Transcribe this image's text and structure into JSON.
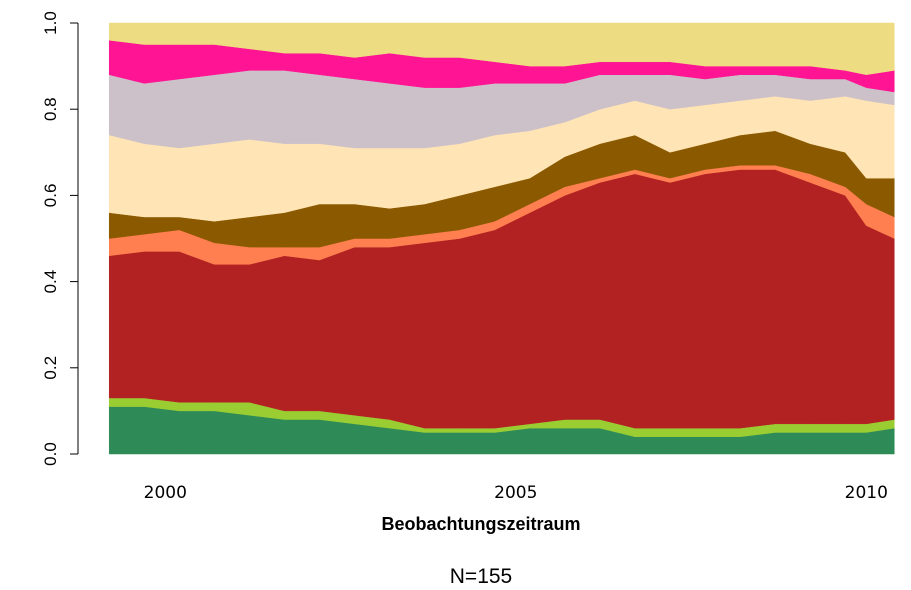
{
  "chart_data": {
    "type": "stacked_area",
    "xlabel": "Beobachtungszeitraum",
    "note": "N=155",
    "x": [
      1999.2,
      1999.7,
      2000.2,
      2000.7,
      2001.2,
      2001.7,
      2002.2,
      2002.7,
      2003.2,
      2003.7,
      2004.2,
      2004.7,
      2005.2,
      2005.7,
      2006.2,
      2006.7,
      2007.2,
      2007.7,
      2008.2,
      2008.7,
      2009.2,
      2009.7,
      2010.0,
      2010.4
    ],
    "xlim": [
      1999.14,
      2010.41
    ],
    "xticks": [
      2000,
      2005,
      2010
    ],
    "ylim": [
      0,
      1
    ],
    "yticks": [
      {
        "value": 0,
        "label": "0.0"
      },
      {
        "value": 0.2,
        "label": "0.2"
      },
      {
        "value": 0.4,
        "label": "0.4"
      },
      {
        "value": 0.6,
        "label": "0.6"
      },
      {
        "value": 0.8,
        "label": "0.8"
      },
      {
        "value": 1,
        "label": "1.0"
      }
    ],
    "series": [
      {
        "color": "#2e8b57",
        "values": [
          0.11,
          0.11,
          0.1,
          0.1,
          0.09,
          0.08,
          0.08,
          0.07,
          0.06,
          0.05,
          0.05,
          0.05,
          0.06,
          0.06,
          0.06,
          0.04,
          0.04,
          0.04,
          0.04,
          0.05,
          0.05,
          0.05,
          0.05,
          0.06
        ]
      },
      {
        "color": "#9acd32",
        "values": [
          0.02,
          0.02,
          0.02,
          0.02,
          0.03,
          0.02,
          0.02,
          0.02,
          0.02,
          0.01,
          0.01,
          0.01,
          0.01,
          0.02,
          0.02,
          0.02,
          0.02,
          0.02,
          0.02,
          0.02,
          0.02,
          0.02,
          0.02,
          0.02
        ]
      },
      {
        "color": "#b22222",
        "values": [
          0.33,
          0.34,
          0.35,
          0.32,
          0.32,
          0.36,
          0.35,
          0.39,
          0.4,
          0.43,
          0.44,
          0.46,
          0.49,
          0.52,
          0.55,
          0.59,
          0.57,
          0.59,
          0.6,
          0.59,
          0.56,
          0.53,
          0.46,
          0.42
        ]
      },
      {
        "color": "#ff7f50",
        "values": [
          0.04,
          0.04,
          0.05,
          0.05,
          0.04,
          0.02,
          0.03,
          0.02,
          0.02,
          0.02,
          0.02,
          0.02,
          0.02,
          0.02,
          0.01,
          0.01,
          0.01,
          0.01,
          0.01,
          0.01,
          0.02,
          0.02,
          0.05,
          0.05
        ]
      },
      {
        "color": "#8b5a00",
        "values": [
          0.06,
          0.04,
          0.03,
          0.05,
          0.07,
          0.08,
          0.1,
          0.08,
          0.07,
          0.07,
          0.08,
          0.08,
          0.06,
          0.07,
          0.08,
          0.08,
          0.06,
          0.06,
          0.07,
          0.08,
          0.07,
          0.08,
          0.06,
          0.09
        ]
      },
      {
        "color": "#ffe4b5",
        "values": [
          0.18,
          0.17,
          0.16,
          0.18,
          0.18,
          0.16,
          0.14,
          0.13,
          0.14,
          0.13,
          0.12,
          0.12,
          0.11,
          0.08,
          0.08,
          0.08,
          0.1,
          0.09,
          0.08,
          0.08,
          0.1,
          0.13,
          0.18,
          0.17
        ]
      },
      {
        "color": "#cdc1c9",
        "values": [
          0.14,
          0.14,
          0.16,
          0.16,
          0.16,
          0.17,
          0.16,
          0.16,
          0.15,
          0.14,
          0.13,
          0.12,
          0.11,
          0.09,
          0.08,
          0.06,
          0.08,
          0.06,
          0.06,
          0.05,
          0.05,
          0.04,
          0.03,
          0.03
        ]
      },
      {
        "color": "#ff1493",
        "values": [
          0.08,
          0.09,
          0.08,
          0.07,
          0.05,
          0.04,
          0.05,
          0.05,
          0.07,
          0.07,
          0.07,
          0.05,
          0.04,
          0.04,
          0.03,
          0.03,
          0.03,
          0.03,
          0.02,
          0.02,
          0.03,
          0.02,
          0.03,
          0.05
        ]
      },
      {
        "color": "#eedc82",
        "values": [
          0.04,
          0.05,
          0.05,
          0.05,
          0.06,
          0.07,
          0.07,
          0.08,
          0.07,
          0.08,
          0.08,
          0.09,
          0.1,
          0.1,
          0.09,
          0.09,
          0.09,
          0.1,
          0.1,
          0.1,
          0.1,
          0.11,
          0.12,
          0.11
        ]
      }
    ]
  }
}
